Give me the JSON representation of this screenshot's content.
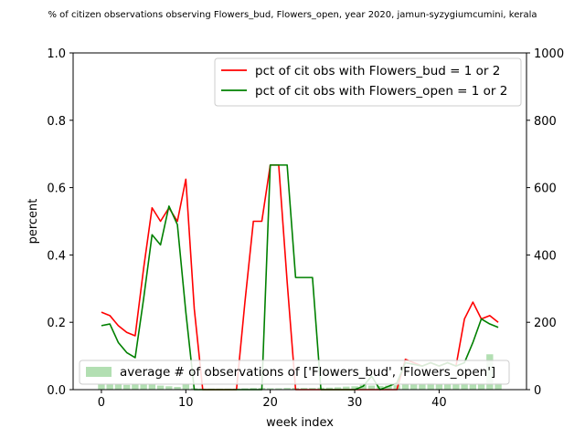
{
  "chart_data": {
    "type": "line",
    "title": "% of citizen observations observing Flowers_bud, Flowers_open, year 2020, jamun-syzygiumcumini, kerala",
    "xlabel": "week index",
    "ylabel": "percent",
    "xlim": [
      -3.35,
      50.35
    ],
    "ylim": [
      0,
      1.0
    ],
    "y2lim": [
      0,
      1000
    ],
    "x_ticks": [
      0,
      10,
      20,
      30,
      40
    ],
    "y_ticks": [
      0.0,
      0.2,
      0.4,
      0.6,
      0.8,
      1.0
    ],
    "y2_ticks": [
      0,
      200,
      400,
      600,
      800,
      1000
    ],
    "x_tick_labels": [
      "0",
      "10",
      "20",
      "30",
      "40"
    ],
    "y_tick_labels": [
      "0.0",
      "0.2",
      "0.4",
      "0.6",
      "0.8",
      "1.0"
    ],
    "y2_tick_labels": [
      "0",
      "200",
      "400",
      "600",
      "800",
      "1000"
    ],
    "legend_top_placement": "top-right",
    "legend_bottom_placement": "lower-left",
    "colors": {
      "bud": "#ff0000",
      "open": "#008000",
      "bars": "#b2dfb2"
    },
    "x": [
      0,
      1,
      2,
      3,
      4,
      5,
      6,
      7,
      8,
      9,
      10,
      11,
      12,
      13,
      14,
      15,
      16,
      17,
      18,
      19,
      20,
      21,
      22,
      23,
      24,
      25,
      26,
      27,
      28,
      29,
      30,
      31,
      32,
      33,
      34,
      35,
      36,
      37,
      38,
      39,
      40,
      41,
      42,
      43,
      44,
      45,
      46,
      47
    ],
    "series": [
      {
        "name": "pct of cit obs with Flowers_bud = 1 or 2",
        "color": "#ff0000",
        "values": [
          0.23,
          0.22,
          0.19,
          0.17,
          0.16,
          0.36,
          0.54,
          0.5,
          0.54,
          0.5,
          0.625,
          0.24,
          0,
          0,
          0,
          0,
          0,
          0.26,
          0.5,
          0.5,
          0.667,
          0.667,
          0.32,
          0,
          0,
          0,
          0,
          0,
          0,
          0,
          0,
          0,
          0,
          0,
          0,
          0,
          0.09,
          0.08,
          0.07,
          0.08,
          0.07,
          0.08,
          0.07,
          0.21,
          0.26,
          0.21,
          0.22,
          0.2
        ]
      },
      {
        "name": "pct of cit obs with Flowers_open = 1 or 2",
        "color": "#008000",
        "values": [
          0.19,
          0.195,
          0.14,
          0.11,
          0.095,
          0.27,
          0.46,
          0.43,
          0.545,
          0.49,
          0.23,
          0,
          0,
          0,
          0,
          0,
          0,
          0,
          0,
          0,
          0.667,
          0.667,
          0.667,
          0.333,
          0.333,
          0.333,
          0,
          0,
          0,
          0,
          0,
          0.01,
          0.04,
          0,
          0.01,
          0.02,
          0.08,
          0.075,
          0.07,
          0.08,
          0.07,
          0.08,
          0.07,
          0.08,
          0.14,
          0.21,
          0.195,
          0.185
        ]
      }
    ],
    "bars": {
      "name": "average # of observations of ['Flowers_bud', 'Flowers_open']",
      "color": "#b2dfb2",
      "values": [
        15,
        18,
        16,
        14,
        15,
        16,
        15,
        12,
        10,
        8,
        18,
        4,
        3,
        3,
        3,
        3,
        3,
        4,
        5,
        5,
        4,
        4,
        5,
        5,
        5,
        5,
        6,
        6,
        7,
        9,
        10,
        14,
        12,
        11,
        12,
        13,
        16,
        15,
        18,
        20,
        17,
        16,
        16,
        20,
        16,
        18,
        105,
        20
      ]
    }
  }
}
